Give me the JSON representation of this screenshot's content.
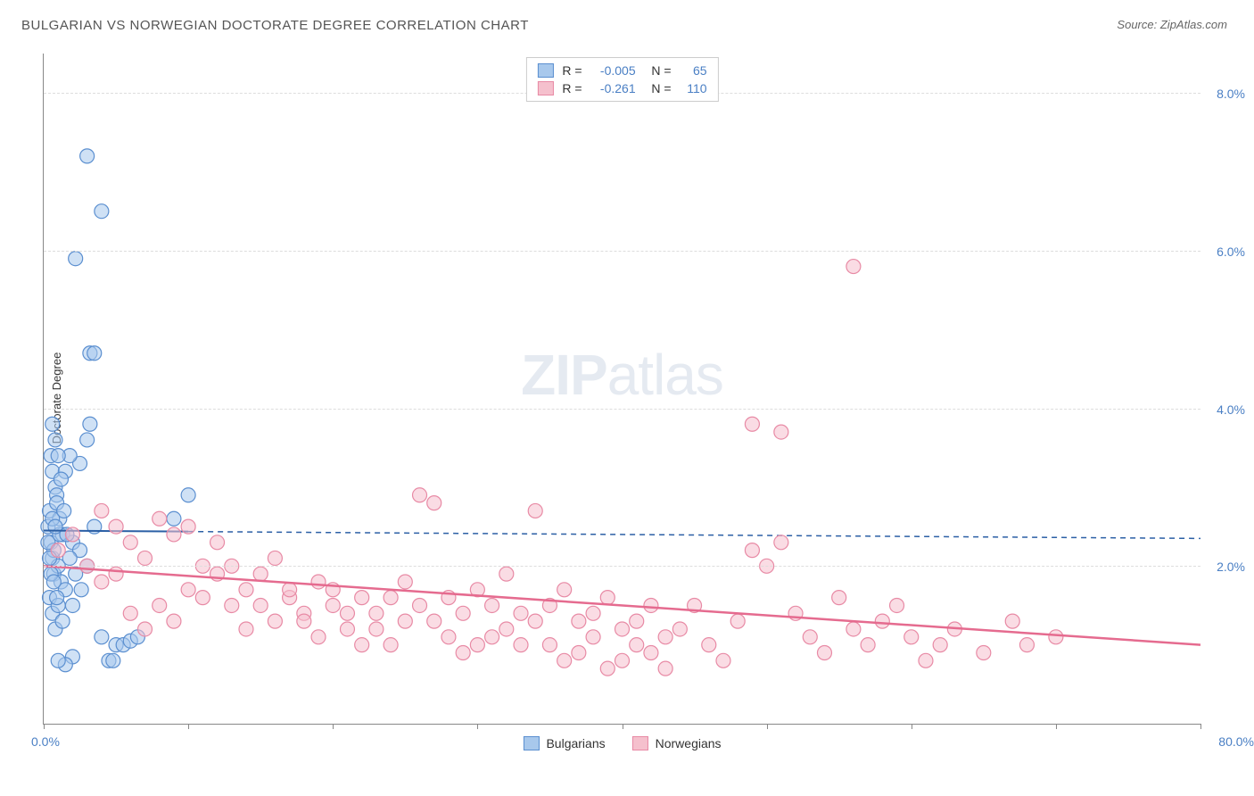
{
  "title": "BULGARIAN VS NORWEGIAN DOCTORATE DEGREE CORRELATION CHART",
  "source_label": "Source:",
  "source_name": "ZipAtlas.com",
  "ylabel": "Doctorate Degree",
  "watermark_bold": "ZIP",
  "watermark_rest": "atlas",
  "chart": {
    "type": "scatter",
    "background_color": "#ffffff",
    "grid_color": "#dddddd",
    "grid_dash": "4,4",
    "axis_color": "#888888",
    "xlim": [
      0,
      80
    ],
    "ylim": [
      0,
      8.5
    ],
    "xtick_label_min": "0.0%",
    "xtick_label_max": "80.0%",
    "xtick_positions": [
      0,
      10,
      20,
      30,
      40,
      50,
      60,
      70,
      80
    ],
    "ytick_positions": [
      2,
      4,
      6,
      8
    ],
    "ytick_labels": [
      "2.0%",
      "4.0%",
      "6.0%",
      "8.0%"
    ],
    "ytick_label_color": "#4a7fc4",
    "ytick_fontsize": 14,
    "marker_radius": 8,
    "marker_opacity": 0.55,
    "marker_stroke_width": 1.2,
    "series": [
      {
        "name": "Bulgarians",
        "color_fill": "#a8c8ec",
        "color_stroke": "#5b8fd0",
        "R": "-0.005",
        "N": "65",
        "trend": {
          "slope_per_x": -0.00125,
          "intercept": 2.45,
          "solid_until_x": 10,
          "color": "#2b5fa5",
          "width": 2
        },
        "points": [
          [
            0.3,
            2.5
          ],
          [
            0.5,
            2.3
          ],
          [
            0.4,
            2.7
          ],
          [
            0.6,
            2.1
          ],
          [
            0.7,
            1.9
          ],
          [
            0.8,
            3.0
          ],
          [
            1.0,
            2.0
          ],
          [
            1.2,
            1.8
          ],
          [
            0.5,
            3.4
          ],
          [
            0.6,
            3.2
          ],
          [
            0.9,
            2.9
          ],
          [
            1.1,
            2.6
          ],
          [
            1.3,
            2.4
          ],
          [
            0.4,
            1.6
          ],
          [
            0.6,
            1.4
          ],
          [
            0.8,
            1.2
          ],
          [
            1.0,
            1.5
          ],
          [
            1.5,
            1.7
          ],
          [
            2.0,
            2.3
          ],
          [
            2.5,
            2.2
          ],
          [
            3.0,
            2.0
          ],
          [
            3.5,
            2.5
          ],
          [
            4.0,
            1.1
          ],
          [
            5.0,
            1.0
          ],
          [
            5.5,
            1.0
          ],
          [
            6.0,
            1.05
          ],
          [
            6.5,
            1.1
          ],
          [
            2.5,
            3.3
          ],
          [
            3.0,
            3.6
          ],
          [
            3.2,
            3.8
          ],
          [
            1.8,
            3.4
          ],
          [
            1.5,
            3.2
          ],
          [
            0.8,
            3.6
          ],
          [
            0.6,
            3.8
          ],
          [
            1.0,
            3.4
          ],
          [
            1.2,
            3.1
          ],
          [
            9.0,
            2.6
          ],
          [
            10.0,
            2.9
          ],
          [
            2.0,
            0.85
          ],
          [
            4.5,
            0.8
          ],
          [
            4.8,
            0.8
          ],
          [
            1.5,
            0.75
          ],
          [
            1.0,
            0.8
          ],
          [
            3.2,
            4.7
          ],
          [
            3.5,
            4.7
          ],
          [
            2.2,
            5.9
          ],
          [
            3.0,
            7.2
          ],
          [
            4.0,
            6.5
          ],
          [
            0.9,
            2.8
          ],
          [
            1.1,
            2.4
          ],
          [
            0.7,
            2.2
          ],
          [
            0.5,
            1.9
          ],
          [
            0.4,
            2.1
          ],
          [
            0.3,
            2.3
          ],
          [
            0.6,
            2.6
          ],
          [
            0.8,
            2.5
          ],
          [
            1.4,
            2.7
          ],
          [
            1.6,
            2.4
          ],
          [
            1.8,
            2.1
          ],
          [
            2.2,
            1.9
          ],
          [
            2.6,
            1.7
          ],
          [
            2.0,
            1.5
          ],
          [
            1.3,
            1.3
          ],
          [
            0.9,
            1.6
          ],
          [
            0.7,
            1.8
          ]
        ]
      },
      {
        "name": "Norwegians",
        "color_fill": "#f5c0cd",
        "color_stroke": "#e88aa5",
        "R": "-0.261",
        "N": "110",
        "trend": {
          "slope_per_x": -0.0125,
          "intercept": 2.0,
          "solid_until_x": 80,
          "color": "#e56b8f",
          "width": 2.5
        },
        "points": [
          [
            1,
            2.2
          ],
          [
            2,
            2.4
          ],
          [
            3,
            2.0
          ],
          [
            4,
            1.8
          ],
          [
            5,
            1.9
          ],
          [
            6,
            2.3
          ],
          [
            7,
            2.1
          ],
          [
            8,
            2.6
          ],
          [
            9,
            2.4
          ],
          [
            10,
            2.5
          ],
          [
            11,
            1.6
          ],
          [
            12,
            1.9
          ],
          [
            13,
            2.0
          ],
          [
            14,
            1.7
          ],
          [
            15,
            1.5
          ],
          [
            16,
            1.3
          ],
          [
            17,
            1.6
          ],
          [
            18,
            1.4
          ],
          [
            19,
            1.8
          ],
          [
            20,
            1.5
          ],
          [
            21,
            1.2
          ],
          [
            22,
            1.0
          ],
          [
            23,
            1.4
          ],
          [
            24,
            1.6
          ],
          [
            25,
            1.3
          ],
          [
            26,
            2.9
          ],
          [
            27,
            2.8
          ],
          [
            28,
            1.1
          ],
          [
            29,
            0.9
          ],
          [
            30,
            1.0
          ],
          [
            31,
            1.5
          ],
          [
            32,
            1.2
          ],
          [
            33,
            1.4
          ],
          [
            34,
            2.7
          ],
          [
            35,
            1.0
          ],
          [
            36,
            0.8
          ],
          [
            37,
            1.3
          ],
          [
            38,
            1.1
          ],
          [
            39,
            0.7
          ],
          [
            40,
            0.8
          ],
          [
            41,
            1.0
          ],
          [
            42,
            0.9
          ],
          [
            43,
            0.7
          ],
          [
            44,
            1.2
          ],
          [
            45,
            1.5
          ],
          [
            46,
            1.0
          ],
          [
            47,
            0.8
          ],
          [
            48,
            1.3
          ],
          [
            49,
            2.2
          ],
          [
            50,
            2.0
          ],
          [
            51,
            2.3
          ],
          [
            52,
            1.4
          ],
          [
            53,
            1.1
          ],
          [
            54,
            0.9
          ],
          [
            55,
            1.6
          ],
          [
            56,
            1.2
          ],
          [
            57,
            1.0
          ],
          [
            58,
            1.3
          ],
          [
            59,
            1.5
          ],
          [
            60,
            1.1
          ],
          [
            61,
            0.8
          ],
          [
            62,
            1.0
          ],
          [
            63,
            1.2
          ],
          [
            49,
            3.8
          ],
          [
            51,
            3.7
          ],
          [
            56,
            5.8
          ],
          [
            67,
            1.3
          ],
          [
            65,
            0.9
          ],
          [
            68,
            1.0
          ],
          [
            70,
            1.1
          ],
          [
            4,
            2.7
          ],
          [
            5,
            2.5
          ],
          [
            6,
            1.4
          ],
          [
            7,
            1.2
          ],
          [
            8,
            1.5
          ],
          [
            9,
            1.3
          ],
          [
            10,
            1.7
          ],
          [
            11,
            2.0
          ],
          [
            12,
            2.3
          ],
          [
            13,
            1.5
          ],
          [
            14,
            1.2
          ],
          [
            15,
            1.9
          ],
          [
            16,
            2.1
          ],
          [
            17,
            1.7
          ],
          [
            18,
            1.3
          ],
          [
            19,
            1.1
          ],
          [
            20,
            1.7
          ],
          [
            21,
            1.4
          ],
          [
            22,
            1.6
          ],
          [
            23,
            1.2
          ],
          [
            24,
            1.0
          ],
          [
            25,
            1.8
          ],
          [
            26,
            1.5
          ],
          [
            27,
            1.3
          ],
          [
            28,
            1.6
          ],
          [
            29,
            1.4
          ],
          [
            30,
            1.7
          ],
          [
            31,
            1.1
          ],
          [
            32,
            1.9
          ],
          [
            33,
            1.0
          ],
          [
            34,
            1.3
          ],
          [
            35,
            1.5
          ],
          [
            36,
            1.7
          ],
          [
            37,
            0.9
          ],
          [
            38,
            1.4
          ],
          [
            39,
            1.6
          ],
          [
            40,
            1.2
          ],
          [
            41,
            1.3
          ],
          [
            42,
            1.5
          ],
          [
            43,
            1.1
          ]
        ]
      }
    ],
    "legend_top": {
      "R_label": "R =",
      "N_label": "N ="
    },
    "legend_bottom": {
      "items": [
        "Bulgarians",
        "Norwegians"
      ]
    }
  }
}
